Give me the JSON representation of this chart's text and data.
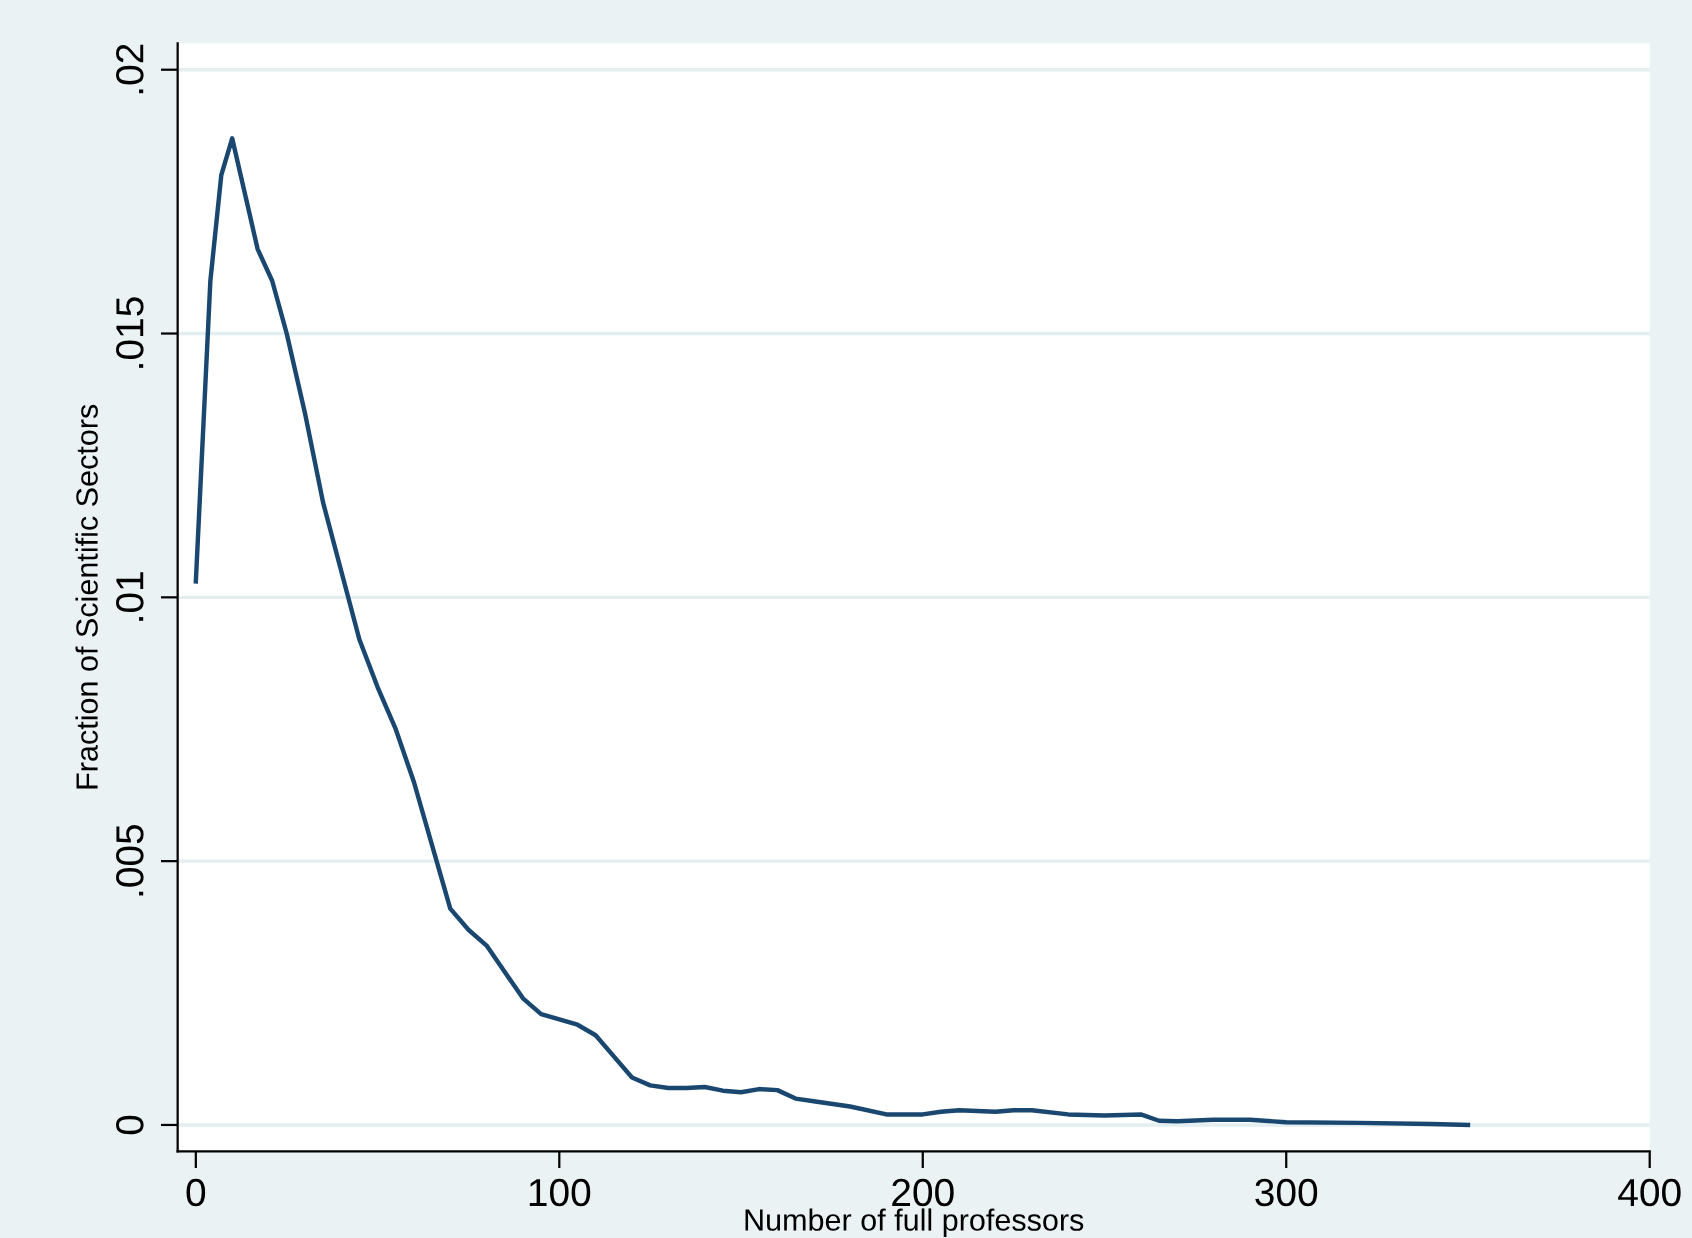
{
  "chart_data": {
    "type": "line",
    "xlabel": "Number of full professors",
    "ylabel": "Fraction of Scientific Sectors",
    "x": [
      0,
      4,
      7,
      10,
      14,
      17,
      21,
      25,
      30,
      35,
      40,
      45,
      50,
      55,
      60,
      65,
      70,
      75,
      80,
      85,
      90,
      95,
      100,
      105,
      110,
      115,
      120,
      125,
      130,
      135,
      140,
      145,
      150,
      155,
      160,
      165,
      170,
      180,
      190,
      200,
      205,
      210,
      220,
      225,
      230,
      240,
      250,
      260,
      265,
      270,
      280,
      290,
      300,
      320,
      340,
      350
    ],
    "series": [
      {
        "color": "#1a476f",
        "values": [
          0.0103,
          0.016,
          0.018,
          0.0187,
          0.0175,
          0.0166,
          0.016,
          0.015,
          0.0135,
          0.0118,
          0.0105,
          0.0092,
          0.0083,
          0.0075,
          0.0065,
          0.0053,
          0.0041,
          0.0037,
          0.0034,
          0.0029,
          0.0024,
          0.0021,
          0.002,
          0.0019,
          0.0017,
          0.0013,
          0.0009,
          0.00075,
          0.0007,
          0.0007,
          0.00072,
          0.00065,
          0.00062,
          0.00068,
          0.00066,
          0.0005,
          0.00045,
          0.00035,
          0.0002,
          0.0002,
          0.00025,
          0.00028,
          0.00025,
          0.00028,
          0.00028,
          0.0002,
          0.00018,
          0.0002,
          8e-05,
          7e-05,
          0.0001,
          0.0001,
          5e-05,
          4e-05,
          2e-05,
          0
        ]
      }
    ],
    "xlim": [
      -5,
      400
    ],
    "xticks": [
      0,
      100,
      200,
      300,
      400
    ],
    "ylim": [
      -0.0005,
      0.0205
    ],
    "yticks": [
      {
        "value": 0,
        "label": "0"
      },
      {
        "value": 0.005,
        "label": ".005"
      },
      {
        "value": 0.01,
        "label": ".01"
      },
      {
        "value": 0.015,
        "label": ".015"
      },
      {
        "value": 0.02,
        "label": ".02"
      }
    ],
    "grid": "y",
    "legend": false,
    "marker": "none",
    "line_style": "solid"
  }
}
